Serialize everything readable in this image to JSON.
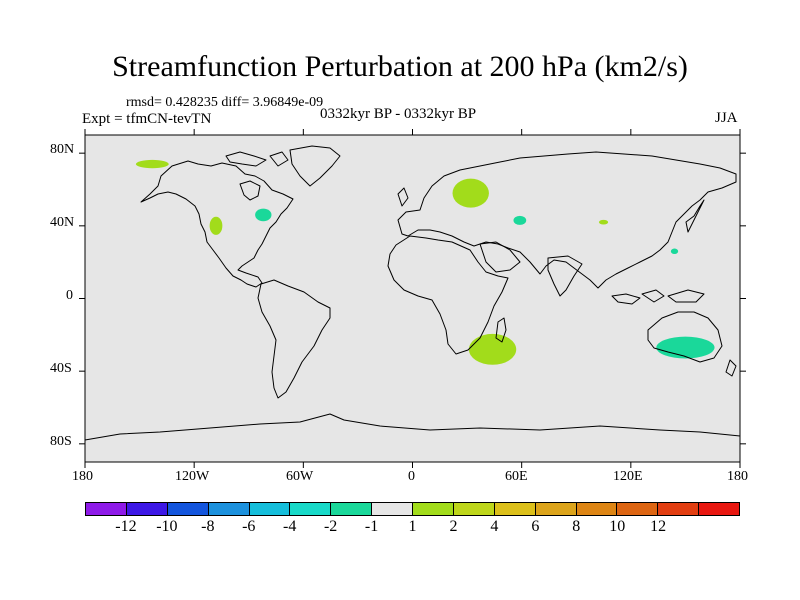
{
  "title": "Streamfunction Perturbation at 200 hPa (km2/s)",
  "stats": "rmsd= 0.428235 diff= 3.96849e-09",
  "experiment": "Expt = tfmCN-tevTN",
  "period": "0332kyr BP - 0332kyr BP",
  "season": "JJA",
  "axes": {
    "y_ticks": [
      "80N",
      "40N",
      "0",
      "40S",
      "80S"
    ],
    "x_ticks": [
      "180",
      "120W",
      "60W",
      "0",
      "60E",
      "120E",
      "180"
    ]
  },
  "colorbar": {
    "colors": [
      "#8e1ae8",
      "#3d18e6",
      "#1355dd",
      "#1c91dd",
      "#15bedb",
      "#18d9c8",
      "#1ad89a",
      "#e6e6e6",
      "#a2dc1b",
      "#bed61b",
      "#dcc01b",
      "#dca41b",
      "#dd8514",
      "#dd6512",
      "#e23e11",
      "#e81710"
    ],
    "labels": [
      "-12",
      "-10",
      "-8",
      "-6",
      "-4",
      "-2",
      "-1",
      "1",
      "2",
      "4",
      "6",
      "8",
      "10",
      "12"
    ]
  },
  "colors": {
    "background_field": "#e6e6e6",
    "positive_anomaly": "#a2dc1b",
    "negative_anomaly": "#1ad89a"
  },
  "anomalies": [
    {
      "region": "arctic-north-america",
      "lon": -143,
      "lat": 74,
      "rx": 9,
      "ry": 2.3,
      "class": "1 to 2"
    },
    {
      "region": "western-usa",
      "lon": -108,
      "lat": 40,
      "rx": 3.5,
      "ry": 5,
      "class": "1 to 2"
    },
    {
      "region": "great-lakes",
      "lon": -82,
      "lat": 46,
      "rx": 4.5,
      "ry": 3.5,
      "class": "-2 to -1"
    },
    {
      "region": "scandinavia-russia",
      "lon": 32,
      "lat": 58,
      "rx": 10,
      "ry": 8,
      "class": "1 to 2"
    },
    {
      "region": "central-asia",
      "lon": 59,
      "lat": 43,
      "rx": 3.5,
      "ry": 2.5,
      "class": "-2 to -1"
    },
    {
      "region": "mongolia",
      "lon": 105,
      "lat": 42,
      "rx": 2.5,
      "ry": 1.3,
      "class": "1 to 2"
    },
    {
      "region": "north-pacific",
      "lon": 144,
      "lat": 26,
      "rx": 2,
      "ry": 1.5,
      "class": "-2 to -1"
    },
    {
      "region": "southern-africa",
      "lon": 44,
      "lat": -28,
      "rx": 13,
      "ry": 8.5,
      "class": "1 to 2"
    },
    {
      "region": "australia",
      "lon": 150,
      "lat": -27,
      "rx": 16,
      "ry": 6,
      "class": "-2 to -1"
    }
  ]
}
